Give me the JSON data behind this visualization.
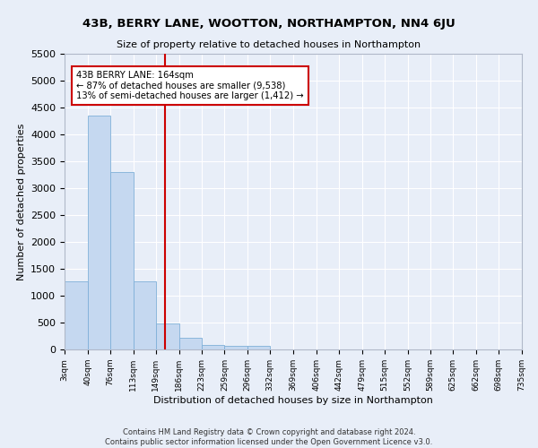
{
  "title": "43B, BERRY LANE, WOOTTON, NORTHAMPTON, NN4 6JU",
  "subtitle": "Size of property relative to detached houses in Northampton",
  "xlabel": "Distribution of detached houses by size in Northampton",
  "ylabel": "Number of detached properties",
  "footer_line1": "Contains HM Land Registry data © Crown copyright and database right 2024.",
  "footer_line2": "Contains public sector information licensed under the Open Government Licence v3.0.",
  "bin_edges": [
    3,
    40,
    76,
    113,
    149,
    186,
    223,
    259,
    296,
    332,
    369,
    406,
    442,
    479,
    515,
    552,
    589,
    625,
    662,
    698,
    735
  ],
  "bar_heights": [
    1260,
    4350,
    3300,
    1260,
    480,
    210,
    90,
    75,
    60,
    0,
    0,
    0,
    0,
    0,
    0,
    0,
    0,
    0,
    0,
    0
  ],
  "bar_color": "#c5d8f0",
  "bar_edge_color": "#7fb0d8",
  "property_size": 164,
  "vline_color": "#cc0000",
  "annotation_text_line1": "43B BERRY LANE: 164sqm",
  "annotation_text_line2": "← 87% of detached houses are smaller (9,538)",
  "annotation_text_line3": "13% of semi-detached houses are larger (1,412) →",
  "annotation_box_color": "#cc0000",
  "ylim": [
    0,
    5500
  ],
  "background_color": "#e8eef8",
  "grid_color": "#ffffff",
  "tick_labels": [
    "3sqm",
    "40sqm",
    "76sqm",
    "113sqm",
    "149sqm",
    "186sqm",
    "223sqm",
    "259sqm",
    "296sqm",
    "332sqm",
    "369sqm",
    "406sqm",
    "442sqm",
    "479sqm",
    "515sqm",
    "552sqm",
    "589sqm",
    "625sqm",
    "662sqm",
    "698sqm",
    "735sqm"
  ]
}
